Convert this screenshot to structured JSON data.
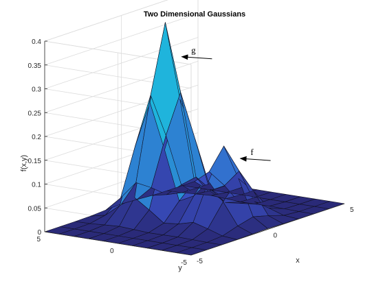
{
  "chart_data": {
    "type": "surface",
    "title": "Two Dimensional Gaussians",
    "xlabel": "x",
    "ylabel": "y",
    "zlabel": "f(x,y)",
    "x_ticks": [
      "-5",
      "0",
      "5"
    ],
    "y_ticks": [
      "-5",
      "0",
      "5"
    ],
    "z_ticks": [
      "0",
      "0.05",
      "0.1",
      "0.15",
      "0.2",
      "0.25",
      "0.3",
      "0.35",
      "0.4"
    ],
    "xlim": [
      -5,
      5
    ],
    "ylim": [
      -5,
      5
    ],
    "zlim": [
      0,
      0.4
    ],
    "grid": true,
    "x_values": [
      -5,
      -4,
      -3,
      -2,
      -1,
      0,
      1,
      2,
      3,
      4,
      5
    ],
    "y_values": [
      -5,
      -4,
      -3,
      -2,
      -1,
      0,
      1,
      2,
      3,
      4,
      5
    ],
    "surfaces": [
      {
        "label": "g",
        "mean_x": 0,
        "mean_y": 2,
        "peak": 0.4
      },
      {
        "label": "f",
        "mean_x": 0,
        "mean_y": -2,
        "peak": 0.16
      }
    ],
    "annotations": [
      {
        "text": "g",
        "points_to": "g"
      },
      {
        "text": "f",
        "points_to": "f"
      }
    ],
    "colors": {
      "low": "#2a2a78",
      "high": "#1fb4dc",
      "edge": "#111122"
    }
  }
}
